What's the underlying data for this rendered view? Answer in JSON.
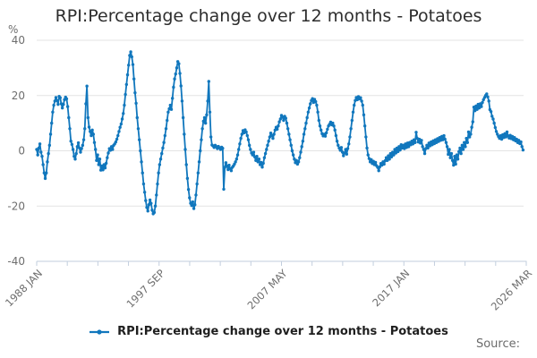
{
  "header": {
    "title": "RPI:Percentage change over 12 months - Potatoes"
  },
  "y_axis": {
    "unit": "%",
    "ticks": [
      "40",
      "20",
      "0",
      "-20",
      "-40"
    ],
    "tick_values": [
      40,
      20,
      0,
      -20,
      -40
    ]
  },
  "x_axis": {
    "tick_count": 17,
    "labeled_ticks": [
      {
        "index": 0,
        "label": "1988 JAN"
      },
      {
        "index": 4,
        "label": "1997 SEP"
      },
      {
        "index": 8,
        "label": "2007 MAY"
      },
      {
        "index": 12,
        "label": "2017 JAN"
      },
      {
        "index": 16,
        "label": "2026 MAR"
      }
    ]
  },
  "legend": {
    "marker": "line-with-dot-icon",
    "label": "RPI:Percentage change over 12 months - Potatoes"
  },
  "footer": {
    "source_label": "Source:"
  },
  "colors": {
    "series": "#1177bd",
    "grid": "#e3e3e3",
    "axis": "#c2cede",
    "muted_text": "#6e6e6e",
    "title_text": "#2d2d2d",
    "legend_text": "#1f1f1f"
  },
  "chart_data": {
    "type": "line",
    "title": "RPI:Percentage change over 12 months - Potatoes",
    "ylabel": "%",
    "ylim": [
      -40,
      40
    ],
    "gridlines": [
      40,
      20,
      0,
      -20,
      -40
    ],
    "frequency": "monthly",
    "x_start_label": "1988 JAN",
    "x_end_label": "2026 MAR",
    "axis_total_months": 458,
    "marker_style": "dot",
    "legend_position": "bottom",
    "values": [
      0.5,
      -1.5,
      1.0,
      2.5,
      -0.5,
      -2.0,
      -5.0,
      -8.0,
      -10.0,
      -8.0,
      -4.0,
      -1.0,
      2.0,
      6.0,
      10.0,
      14.0,
      16.5,
      18.0,
      19.3,
      18.2,
      16.8,
      19.7,
      19.2,
      17.0,
      15.5,
      16.8,
      18.5,
      19.4,
      18.8,
      16.0,
      12.0,
      8.0,
      3.5,
      2.3,
      0.5,
      -2.0,
      -3.0,
      -1.0,
      1.5,
      2.9,
      1.0,
      -0.5,
      0.8,
      2.0,
      4.0,
      8.0,
      17.0,
      23.4,
      12.0,
      8.6,
      7.0,
      5.5,
      7.5,
      6.0,
      3.0,
      0.5,
      -3.5,
      -1.5,
      -5.0,
      -3.0,
      -7.0,
      -5.5,
      -6.9,
      -5.0,
      -6.2,
      -4.5,
      -2.5,
      -0.8,
      0.8,
      0.2,
      1.5,
      0.5,
      2.0,
      2.5,
      3.2,
      4.2,
      5.5,
      7.0,
      8.5,
      9.7,
      11.5,
      13.5,
      16.5,
      20.4,
      24.0,
      27.5,
      31.0,
      34.5,
      35.8,
      34.0,
      31.2,
      26.0,
      21.0,
      17.2,
      12.0,
      8.0,
      4.0,
      0.0,
      -4.0,
      -8.0,
      -12.0,
      -15.0,
      -18.0,
      -20.5,
      -21.8,
      -19.5,
      -17.8,
      -19.0,
      -21.5,
      -22.8,
      -22.3,
      -20.0,
      -16.0,
      -12.0,
      -8.0,
      -5.0,
      -3.0,
      -1.0,
      1.0,
      3.0,
      5.5,
      8.0,
      11.0,
      14.0,
      15.2,
      16.5,
      15.0,
      19.0,
      23.0,
      26.0,
      27.8,
      30.0,
      32.3,
      31.5,
      28.0,
      23.5,
      18.0,
      12.0,
      6.0,
      0.5,
      -5.0,
      -10.0,
      -14.0,
      -17.0,
      -19.0,
      -19.8,
      -18.5,
      -20.9,
      -19.5,
      -16.0,
      -12.0,
      -8.0,
      -4.0,
      0.0,
      4.0,
      8.0,
      10.7,
      12.0,
      10.0,
      13.0,
      18.0,
      25.1,
      14.0,
      5.0,
      2.1,
      1.8,
      1.2,
      2.0,
      1.5,
      0.8,
      1.6,
      1.1,
      0.5,
      1.3,
      0.9,
      -13.9,
      -6.0,
      -4.3,
      -5.5,
      -6.8,
      -5.2,
      -6.5,
      -7.2,
      -6.0,
      -5.5,
      -4.8,
      -4.0,
      -3.0,
      -1.5,
      0.5,
      2.5,
      4.5,
      6.0,
      7.3,
      6.5,
      7.6,
      6.8,
      5.5,
      4.0,
      2.0,
      0.5,
      -0.8,
      -1.5,
      -0.5,
      -2.2,
      -3.5,
      -2.0,
      -4.0,
      -3.0,
      -5.0,
      -4.2,
      -5.9,
      -4.5,
      -2.5,
      -1.0,
      0.5,
      2.0,
      3.5,
      5.0,
      6.4,
      5.5,
      4.5,
      6.0,
      7.5,
      8.5,
      7.8,
      9.0,
      10.5,
      11.5,
      12.8,
      12.2,
      11.0,
      12.5,
      11.8,
      10.0,
      8.0,
      6.0,
      4.0,
      2.0,
      0.0,
      -1.5,
      -3.0,
      -4.3,
      -3.5,
      -4.8,
      -4.0,
      -2.5,
      -0.5,
      1.5,
      3.5,
      6.0,
      8.0,
      10.0,
      12.0,
      14.0,
      15.5,
      17.0,
      18.2,
      18.9,
      17.5,
      18.6,
      17.8,
      16.5,
      14.0,
      11.0,
      9.0,
      7.5,
      6.2,
      5.4,
      6.0,
      5.3,
      6.5,
      7.8,
      9.0,
      9.6,
      10.4,
      9.4,
      10.0,
      9.0,
      7.5,
      5.5,
      3.5,
      2.0,
      1.0,
      0.2,
      1.2,
      -0.5,
      -1.8,
      -0.8,
      0.5,
      -1.2,
      0.8,
      2.5,
      5.0,
      8.0,
      11.0,
      14.0,
      16.5,
      18.2,
      19.3,
      18.5,
      19.6,
      18.8,
      19.2,
      18.0,
      16.5,
      13.0,
      9.0,
      5.0,
      1.0,
      -1.5,
      -2.8,
      -4.0,
      -3.2,
      -4.6,
      -3.8,
      -5.0,
      -4.2,
      -5.4,
      -6.0,
      -7.2,
      -5.8,
      -4.6,
      -5.2,
      -4.0,
      -4.8,
      -3.6,
      -2.5,
      -3.5,
      -1.8,
      -3.0,
      -1.0,
      -2.2,
      -0.5,
      -1.5,
      0.5,
      -0.8,
      1.0,
      -0.3,
      1.5,
      0.3,
      2.2,
      1.0,
      2.0,
      0.8,
      2.5,
      1.2,
      2.8,
      1.5,
      3.0,
      2.2,
      3.5,
      2.5,
      4.0,
      3.0,
      6.7,
      4.5,
      3.2,
      4.2,
      2.8,
      3.8,
      1.5,
      0.5,
      -1.0,
      0.8,
      2.0,
      1.0,
      2.8,
      1.8,
      3.2,
      2.2,
      3.6,
      2.6,
      4.0,
      3.0,
      4.4,
      3.4,
      4.8,
      3.8,
      5.2,
      4.0,
      5.5,
      4.2,
      3.0,
      1.5,
      -1.3,
      0.5,
      -2.5,
      -1.0,
      -3.5,
      -5.2,
      -2.0,
      -4.8,
      -1.5,
      -3.0,
      -0.3,
      1.0,
      -1.0,
      2.0,
      0.5,
      3.0,
      1.5,
      4.5,
      3.0,
      6.8,
      5.0,
      6.0,
      8.5,
      10.5,
      15.8,
      14.5,
      16.2,
      15.0,
      16.8,
      15.5,
      17.0,
      16.0,
      17.5,
      18.5,
      19.3,
      20.0,
      20.6,
      19.5,
      18.0,
      14.9,
      14.2,
      12.5,
      11.5,
      10.0,
      8.4,
      7.0,
      6.0,
      5.2,
      4.5,
      5.5,
      4.2,
      5.8,
      4.8,
      6.2,
      5.0,
      6.8,
      5.4,
      4.6,
      5.6,
      4.4,
      5.2,
      4.0,
      4.8,
      3.6,
      4.2,
      3.0,
      3.8,
      2.6,
      3.2,
      1.5,
      0.3
    ]
  }
}
